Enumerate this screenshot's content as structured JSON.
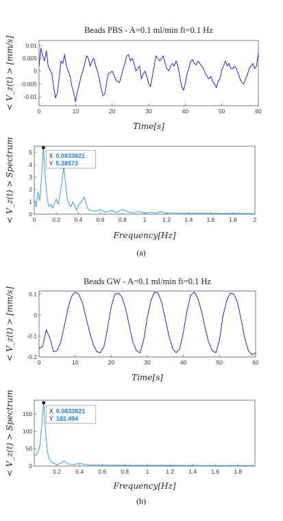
{
  "colors": {
    "time_series": "#2222cc",
    "spectrum": "#3b9ad9",
    "marker": "#222222",
    "datatip_value": "#1f7fd6"
  },
  "panels": [
    {
      "caption": "(a)"
    },
    {
      "caption": "(b)"
    }
  ],
  "chart_data": [
    {
      "type": "line",
      "title": "Beads PBS - A=0.1 ml/min fi=0.1 Hz",
      "xlabel": "Time[s]",
      "ylabel": "< V_z(t) > [mm/s]",
      "xlim": [
        0,
        60
      ],
      "ylim": [
        -0.0135,
        0.012
      ],
      "xticks": [
        "0",
        "10",
        "20",
        "30",
        "40",
        "50",
        "60"
      ],
      "yticks": [
        "-0.01",
        "-0.005",
        "0",
        "0.005",
        "0.01"
      ],
      "x": [
        0,
        0.5,
        1,
        1.5,
        2,
        2.5,
        3,
        3.5,
        4,
        4.5,
        5,
        5.5,
        6,
        6.5,
        7,
        7.5,
        8,
        8.5,
        9,
        9.5,
        10,
        10.5,
        11,
        11.5,
        12,
        12.5,
        13,
        13.5,
        14,
        14.5,
        15,
        15.5,
        16,
        16.5,
        17,
        17.5,
        18,
        18.5,
        19,
        19.5,
        20,
        20.5,
        21,
        21.5,
        22,
        22.5,
        23,
        23.5,
        24,
        24.5,
        25,
        25.5,
        26,
        26.5,
        27,
        27.5,
        28,
        28.5,
        29,
        29.5,
        30,
        30.5,
        31,
        31.5,
        32,
        32.5,
        33,
        33.5,
        34,
        34.5,
        35,
        35.5,
        36,
        36.5,
        37,
        37.5,
        38,
        38.5,
        39,
        39.5,
        40,
        40.5,
        41,
        41.5,
        42,
        42.5,
        43,
        43.5,
        44,
        44.5,
        45,
        45.5,
        46,
        46.5,
        47,
        47.5,
        48,
        48.5,
        49,
        49.5,
        50,
        50.5,
        51,
        51.5,
        52,
        52.5,
        53,
        53.5,
        54,
        54.5,
        55,
        55.5,
        56,
        56.5,
        57,
        57.5,
        58,
        58.5,
        59,
        59.5,
        60
      ],
      "y": [
        0.002,
        0.009,
        0.006,
        0.004,
        0.008,
        0.002,
        0.0005,
        -0.001,
        -0.006,
        -0.0105,
        -0.0085,
        -0.003,
        0.004,
        0.003,
        0.0065,
        0.002,
        0,
        -0.002,
        -0.006,
        -0.0085,
        -0.012,
        -0.008,
        -0.005,
        -0.002,
        0,
        0.003,
        0.006,
        0.005,
        0.002,
        0.004,
        0.005,
        0.002,
        0,
        -0.003,
        -0.007,
        -0.0095,
        -0.009,
        -0.004,
        -0.001,
        -0.0005,
        0,
        -0.0015,
        -0.0035,
        -0.004,
        -0.0045,
        -0.002,
        0.001,
        0.003,
        0.006,
        0.0065,
        0.004,
        0.005,
        0.003,
        0,
        0.001,
        0.002,
        -0.003,
        -0.001,
        0,
        -0.002,
        -0.005,
        -0.006,
        -0.002,
        0.002,
        0.006,
        0.005,
        0.004,
        0.005,
        0.006,
        0.003,
        0.001,
        0,
        0.002,
        0.003,
        0.002,
        0.004,
        0.002,
        -0.002,
        -0.006,
        -0.0075,
        -0.005,
        -0.001,
        0.001,
        0.004,
        0.0045,
        0.003,
        0.0025,
        0.004,
        0.003,
        0.002,
        0.001,
        -0.001,
        -0.002,
        -0.003,
        -0.002,
        -0.004,
        -0.005,
        -0.0065,
        -0.004,
        -0.003,
        0.0005,
        0.002,
        0.004,
        0.002,
        0.003,
        0.001,
        0.001,
        0.002,
        0.001,
        -0.001,
        -0.003,
        -0.0045,
        -0.005,
        -0.003,
        -0.0015,
        0.001,
        0.002,
        0.003,
        0.001,
        0.002,
        0.007
      ],
      "grid": false
    },
    {
      "type": "line",
      "xlabel": "Frequency[Hz]",
      "ylabel": "< V_z(t) > Spectrum",
      "xlim": [
        0,
        2
      ],
      "ylim": [
        0,
        5.5
      ],
      "xticks": [
        "0",
        "0.2",
        "0.4",
        "0.6",
        "0.8",
        "1",
        "1.2",
        "1.4",
        "1.6",
        "1.8",
        "2"
      ],
      "yticks": [
        "0",
        "1",
        "2",
        "3",
        "4",
        "5"
      ],
      "x": [
        0,
        0.017,
        0.033,
        0.05,
        0.067,
        0.083,
        0.1,
        0.117,
        0.133,
        0.15,
        0.167,
        0.183,
        0.2,
        0.217,
        0.233,
        0.25,
        0.267,
        0.283,
        0.3,
        0.317,
        0.333,
        0.35,
        0.367,
        0.383,
        0.4,
        0.417,
        0.433,
        0.45,
        0.467,
        0.483,
        0.5,
        0.55,
        0.6,
        0.65,
        0.7,
        0.75,
        0.8,
        0.85,
        0.9,
        0.95,
        1,
        1.05,
        1.1,
        1.15,
        1.2,
        1.25,
        1.3,
        1.35,
        1.4,
        1.45,
        1.5,
        1.55,
        1.6,
        1.65,
        1.7,
        1.75,
        1.8,
        1.85,
        1.9,
        1.95,
        2
      ],
      "y": [
        1.2,
        0.6,
        1.8,
        1.1,
        3.2,
        5.38573,
        3.0,
        1.3,
        0.6,
        0.8,
        0.5,
        0.9,
        1.2,
        0.8,
        1.6,
        2.6,
        3.9,
        2.5,
        1.2,
        0.8,
        0.6,
        1.0,
        0.7,
        0.3,
        0.7,
        0.9,
        1.1,
        1.4,
        1.0,
        0.5,
        0.3,
        0.25,
        0.35,
        0.15,
        0.3,
        0.12,
        0.4,
        0.18,
        0.1,
        0.22,
        0.08,
        0.15,
        0.1,
        0.2,
        0.06,
        0.12,
        0.08,
        0.1,
        0.05,
        0.08,
        0.06,
        0.1,
        0.05,
        0.07,
        0.04,
        0.06,
        0.05,
        0.07,
        0.04,
        0.05,
        0.03
      ],
      "datatip": {
        "x_label": "X",
        "x_value": "0.0833821",
        "y_label": "Y",
        "y_value": "5.38573"
      },
      "grid": false
    },
    {
      "type": "line",
      "title": "Beads GW - A=0.1 ml/min fi=0.1 Hz",
      "xlabel": "Time[s]",
      "ylabel": "< V_z(t) > [mm/s]",
      "xlim": [
        0,
        60
      ],
      "ylim": [
        -0.2,
        0.115
      ],
      "xticks": [
        "0",
        "10",
        "20",
        "30",
        "40",
        "50",
        "60"
      ],
      "yticks": [
        "-0.2",
        "-0.1",
        "0",
        "0.1"
      ],
      "x": [
        0,
        1,
        2,
        3,
        4,
        5,
        6,
        7,
        8,
        9,
        10,
        11,
        12,
        13,
        14,
        15,
        16,
        17,
        18,
        19,
        20,
        21,
        22,
        23,
        24,
        25,
        26,
        27,
        28,
        29,
        30,
        31,
        32,
        33,
        34,
        35,
        36,
        37,
        38,
        39,
        40,
        41,
        42,
        43,
        44,
        45,
        46,
        47,
        48,
        49,
        50,
        51,
        52,
        53,
        54,
        55,
        56,
        57,
        58,
        59,
        60
      ],
      "y": [
        -0.16,
        -0.15,
        -0.07,
        -0.11,
        -0.175,
        -0.17,
        -0.13,
        -0.05,
        0.03,
        0.09,
        0.11,
        0.1,
        0.06,
        -0.01,
        -0.08,
        -0.14,
        -0.175,
        -0.18,
        -0.15,
        -0.06,
        0.04,
        0.1,
        0.105,
        0.085,
        0.03,
        -0.05,
        -0.13,
        -0.17,
        -0.18,
        -0.12,
        -0.01,
        0.07,
        0.11,
        0.105,
        0.06,
        -0.02,
        -0.1,
        -0.16,
        -0.18,
        -0.16,
        -0.08,
        0.02,
        0.095,
        0.11,
        0.08,
        0.02,
        -0.06,
        -0.13,
        -0.17,
        -0.18,
        -0.12,
        0.0,
        0.07,
        0.105,
        0.1,
        0.06,
        -0.02,
        -0.11,
        -0.17,
        -0.19,
        -0.18
      ],
      "grid": false
    },
    {
      "type": "line",
      "xlabel": "Frequency[Hz]",
      "ylabel": "< V_z(t) > Spectrum",
      "xlim": [
        0,
        1.95
      ],
      "ylim": [
        0,
        190
      ],
      "xticks": [
        "0.2",
        "0.4",
        "0.6",
        "0.8",
        "1",
        "1.2",
        "1.4",
        "1.6",
        "1.8"
      ],
      "yticks": [
        "0",
        "50",
        "100",
        "150"
      ],
      "x": [
        0,
        0.017,
        0.033,
        0.05,
        0.067,
        0.083,
        0.1,
        0.117,
        0.133,
        0.15,
        0.167,
        0.183,
        0.2,
        0.217,
        0.233,
        0.25,
        0.267,
        0.283,
        0.3,
        0.35,
        0.4,
        0.45,
        0.5,
        0.6,
        0.7,
        0.8,
        0.9,
        1,
        1.1,
        1.2,
        1.3,
        1.4,
        1.5,
        1.6,
        1.7,
        1.8,
        1.9,
        1.95
      ],
      "y": [
        30,
        32,
        40,
        60,
        120,
        182.494,
        100,
        40,
        20,
        12,
        8,
        6,
        5,
        6,
        8,
        12,
        14,
        10,
        6,
        5,
        8,
        4,
        3,
        3,
        2.5,
        2.5,
        2,
        2,
        2,
        2,
        1.8,
        1.8,
        1.5,
        1.5,
        1.5,
        1.5,
        1.3,
        1.3
      ],
      "datatip": {
        "x_label": "X",
        "x_value": "0.0833821",
        "y_label": "Y",
        "y_value": "182.494"
      },
      "grid": false
    }
  ]
}
